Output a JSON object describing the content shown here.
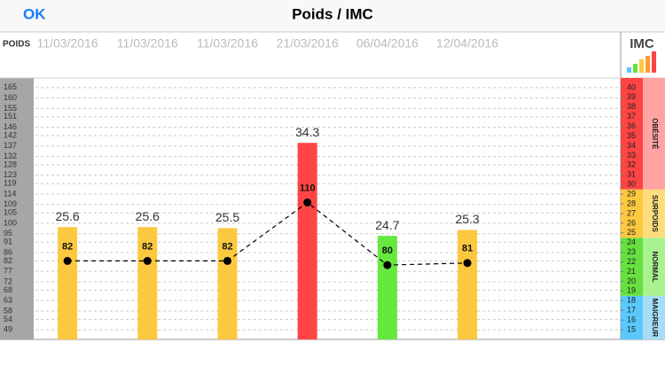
{
  "nav": {
    "back": "OK",
    "title": "Poids / IMC"
  },
  "chart_data": {
    "type": "combo",
    "y_label": "POIDS",
    "y2_label": "IMC",
    "categories": [
      "11/03/2016",
      "11/03/2016",
      "11/03/2016",
      "21/03/2016",
      "06/04/2016",
      "12/04/2016"
    ],
    "series": [
      {
        "type": "bar",
        "axis": "y2",
        "values": [
          25.6,
          25.6,
          25.5,
          34.3,
          24.7,
          25.3
        ],
        "colors": [
          "#fcc83f",
          "#fcc83f",
          "#fcc83f",
          "#ff4444",
          "#66e83f",
          "#fcc83f"
        ]
      },
      {
        "type": "line",
        "values": [
          82,
          82,
          82,
          110,
          80,
          81
        ],
        "color": "#000000"
      }
    ],
    "ylim": [
      44.4,
      169.6
    ],
    "yticks": [
      49,
      54,
      58,
      63,
      68,
      72,
      77,
      82,
      86,
      91,
      95,
      100,
      105,
      109,
      114,
      119,
      123,
      128,
      132,
      137,
      142,
      146,
      151,
      155,
      160,
      165
    ],
    "y2lim": [
      14,
      41
    ],
    "y2ticks": [
      15,
      16,
      17,
      18,
      19,
      20,
      21,
      22,
      23,
      24,
      25,
      26,
      27,
      28,
      29,
      30,
      31,
      32,
      33,
      34,
      35,
      36,
      37,
      38,
      39,
      40
    ],
    "grid": true,
    "zones": [
      {
        "label": "MAIGREUR",
        "range": [
          14,
          18.5
        ],
        "color": "#5ac8fa",
        "label_color": "#a6ddf6"
      },
      {
        "label": "NORMAL",
        "range": [
          18.5,
          24.5
        ],
        "color": "#66e03f",
        "label_color": "#a8f290"
      },
      {
        "label": "SURPOIDS",
        "range": [
          24.5,
          29.5
        ],
        "color": "#fcc83f",
        "label_color": "#fddc7c"
      },
      {
        "label": "OBÉSITÉ",
        "range": [
          29.5,
          41
        ],
        "color": "#ff4444",
        "label_color": "#ffa3a3"
      }
    ]
  }
}
